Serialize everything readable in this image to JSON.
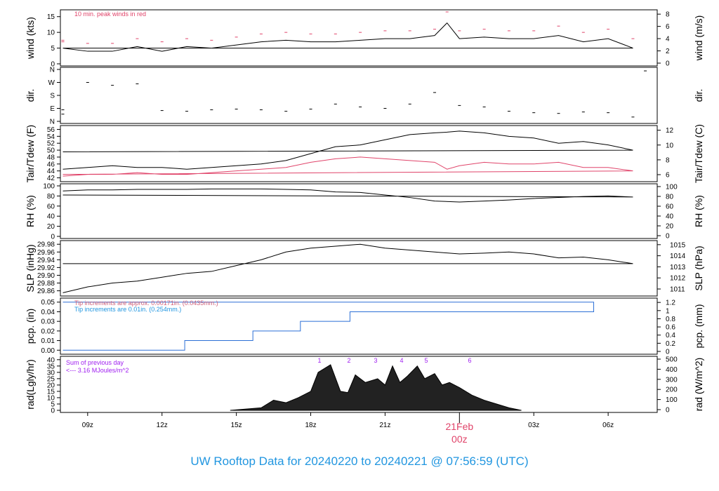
{
  "footer": {
    "title": "UW Rooftop Data for 20240220  to  20240221 @ 07:56:59  (UTC)"
  },
  "colors": {
    "main": "#000000",
    "peak": "#e0446a",
    "dew": "#e0446a",
    "pcp": "#2b6fd6",
    "tip_old": "#d0607a",
    "tip_new": "#2196e0",
    "rad_note": "#a020f0",
    "footer": "#2196e0"
  },
  "chart_data": [
    {
      "type": "line",
      "id": "wind",
      "ylabel": "wind (kts)",
      "ylabel_right": "wind (m/s)",
      "ylim": [
        0,
        16.5
      ],
      "yticks": [
        0,
        5,
        10,
        15
      ],
      "yticks_right": [
        "0",
        "2",
        "4",
        "6",
        "8"
      ],
      "annotation": "10 min. peak winds in red",
      "x": [
        "08",
        "09",
        "10",
        "11",
        "12",
        "13",
        "14",
        "15",
        "16",
        "17",
        "18",
        "19",
        "20",
        "21",
        "22",
        "23",
        "23.5",
        "00",
        "01",
        "02",
        "03",
        "04",
        "05",
        "06",
        "07",
        "08"
      ],
      "series": [
        {
          "values": [
            5,
            4,
            4,
            5.5,
            4,
            5.5,
            5,
            6,
            7,
            7.5,
            7,
            7,
            7.5,
            8,
            8,
            9,
            13,
            8,
            8.5,
            8,
            8,
            9,
            7,
            8,
            5,
            5
          ]
        },
        {
          "values": [
            7,
            6.5,
            6.5,
            8,
            7,
            8,
            7.5,
            8.5,
            9.5,
            10,
            9.5,
            9.5,
            10,
            10.5,
            10.5,
            11,
            16.5,
            10.5,
            11,
            10.5,
            10.5,
            12,
            10,
            11,
            8,
            7.5
          ]
        }
      ]
    },
    {
      "type": "scatter",
      "id": "dir",
      "ylabel": "dir.",
      "ylabel_right": "dir.",
      "ylim": [
        0,
        360
      ],
      "yticks": [
        "N",
        "E",
        "S",
        "W",
        "N"
      ],
      "x": [
        "08",
        "09",
        "10",
        "11",
        "12",
        "13",
        "14",
        "15",
        "16",
        "17",
        "18",
        "19",
        "20",
        "21",
        "22",
        "23",
        "00",
        "01",
        "02",
        "03",
        "04",
        "05",
        "06",
        "07",
        "07.5",
        "08"
      ],
      "values": [
        80,
        270,
        250,
        260,
        75,
        70,
        80,
        85,
        80,
        70,
        85,
        120,
        100,
        90,
        120,
        200,
        110,
        100,
        70,
        60,
        55,
        65,
        60,
        30,
        350,
        50
      ]
    },
    {
      "type": "line",
      "id": "temp",
      "ylabel": "Tair/Tdew (F)",
      "ylabel_right": "Tair/Tdew (C)",
      "ylim": [
        41.5,
        56.5
      ],
      "yticks": [
        42,
        44,
        46,
        48,
        50,
        52,
        54,
        56
      ],
      "yticks_right": [
        "6",
        "8",
        "10",
        "12"
      ],
      "x": [
        "08",
        "09",
        "10",
        "11",
        "12",
        "13",
        "14",
        "15",
        "16",
        "17",
        "18",
        "19",
        "20",
        "21",
        "22",
        "23",
        "23.5",
        "00",
        "01",
        "02",
        "03",
        "04",
        "05",
        "06",
        "07",
        "08"
      ],
      "series": [
        {
          "name": "Tair",
          "values": [
            44.5,
            45,
            45.5,
            45,
            45,
            44.5,
            45,
            45.5,
            46,
            47,
            49,
            51,
            51.5,
            53,
            54.5,
            55,
            55.2,
            55.5,
            55,
            54,
            53.5,
            52,
            52.5,
            51.5,
            50,
            49.5
          ]
        },
        {
          "name": "Tdew",
          "values": [
            42.5,
            43,
            43,
            43.5,
            43,
            43,
            43.5,
            44,
            44.5,
            45,
            46.5,
            47.5,
            48,
            47.5,
            47,
            46.5,
            44.5,
            45.5,
            46.5,
            46,
            46,
            46.5,
            45,
            45,
            44,
            43
          ]
        }
      ]
    },
    {
      "type": "line",
      "id": "rh",
      "ylabel": "RH (%)",
      "ylabel_right": "RH (%)",
      "ylim": [
        0,
        100
      ],
      "yticks": [
        0,
        20,
        40,
        60,
        80,
        100
      ],
      "yticks_right": [
        "0",
        "20",
        "40",
        "60",
        "80",
        "100"
      ],
      "x": [
        "08",
        "09",
        "10",
        "11",
        "12",
        "13",
        "14",
        "15",
        "16",
        "17",
        "18",
        "19",
        "20",
        "21",
        "22",
        "23",
        "00",
        "01",
        "02",
        "03",
        "04",
        "05",
        "06",
        "07",
        "08"
      ],
      "values": [
        90,
        92,
        92,
        93,
        93,
        93,
        94,
        94,
        94,
        93,
        92,
        88,
        87,
        82,
        77,
        70,
        68,
        70,
        72,
        75,
        77,
        79,
        80,
        78,
        82
      ]
    },
    {
      "type": "line",
      "id": "slp",
      "ylabel": "SLP (inHg)",
      "ylabel_right": "SLP (hPa)",
      "ylim": [
        29.852,
        29.984
      ],
      "yticks": [
        "29.86",
        "29.88",
        "29.90",
        "29.92",
        "29.94",
        "29.96",
        "29.98"
      ],
      "yticks_right": [
        "1011",
        "1012",
        "1013",
        "1014",
        "1015"
      ],
      "x": [
        "08",
        "09",
        "10",
        "11",
        "12",
        "13",
        "14",
        "15",
        "16",
        "17",
        "18",
        "19",
        "20",
        "21",
        "22",
        "23",
        "00",
        "01",
        "02",
        "03",
        "04",
        "05",
        "06",
        "07",
        "08"
      ],
      "values": [
        29.855,
        29.87,
        29.88,
        29.885,
        29.895,
        29.905,
        29.91,
        29.925,
        29.94,
        29.96,
        29.97,
        29.975,
        29.98,
        29.97,
        29.965,
        29.96,
        29.955,
        29.957,
        29.96,
        29.955,
        29.945,
        29.947,
        29.94,
        29.93,
        29.93
      ]
    },
    {
      "type": "step",
      "id": "pcp",
      "ylabel": "pcp. (in)",
      "ylabel_right": "pcp. (mm)",
      "ylim": [
        -0.002,
        0.052
      ],
      "yticks": [
        "0.00",
        "0.01",
        "0.02",
        "0.03",
        "0.04",
        "0.05"
      ],
      "yticks_right": [
        "0",
        "0.2",
        "0.4",
        "0.6",
        "0.8",
        "1",
        "1.2"
      ],
      "notes": [
        "Tip increments are approx. 0.00171in. (0.0435mm.)",
        "Tip increments are 0.01in. (0.254mm.)"
      ],
      "x": [
        "08",
        "12:55",
        "15:40",
        "17:35",
        "19:35",
        "05:25",
        "08"
      ],
      "values": [
        0,
        0.01,
        0.02,
        0.03,
        0.04,
        0.05,
        0.05
      ]
    },
    {
      "type": "area",
      "id": "rad",
      "ylabel": "rad(Lgly/hr)",
      "ylabel_right": "rad (W/m^2)",
      "ylim": [
        0,
        41
      ],
      "yticks": [
        0,
        5,
        10,
        15,
        20,
        25,
        30,
        35,
        40
      ],
      "yticks_right": [
        "0",
        "100",
        "200",
        "300",
        "400",
        "500"
      ],
      "notes": [
        "Sum of previous day",
        "<--- 3.16 MJoules/m^2"
      ],
      "hour_marks": [
        "1",
        "2",
        "3",
        "4",
        "5",
        "6"
      ],
      "x": [
        "14.75",
        "16",
        "16.5",
        "17",
        "17.5",
        "18",
        "18.3",
        "18.8",
        "19.2",
        "19.5",
        "19.8",
        "20.2",
        "20.7",
        "21",
        "21.3",
        "21.6",
        "21.9",
        "22.3",
        "22.6",
        "23",
        "23.3",
        "23.6",
        "24",
        "24.5",
        "25",
        "25.5",
        "26",
        "26.5"
      ],
      "values": [
        0,
        2,
        8,
        6,
        10,
        15,
        30,
        36,
        15,
        14,
        28,
        22,
        25,
        20,
        35,
        22,
        27,
        35,
        25,
        29,
        20,
        22,
        18,
        12,
        8,
        5,
        2,
        0
      ]
    }
  ],
  "xaxis": {
    "ticks": [
      "09z",
      "12z",
      "15z",
      "18z",
      "21z",
      "21Feb",
      "03z",
      "06z"
    ],
    "midnight_sub": "00z"
  }
}
